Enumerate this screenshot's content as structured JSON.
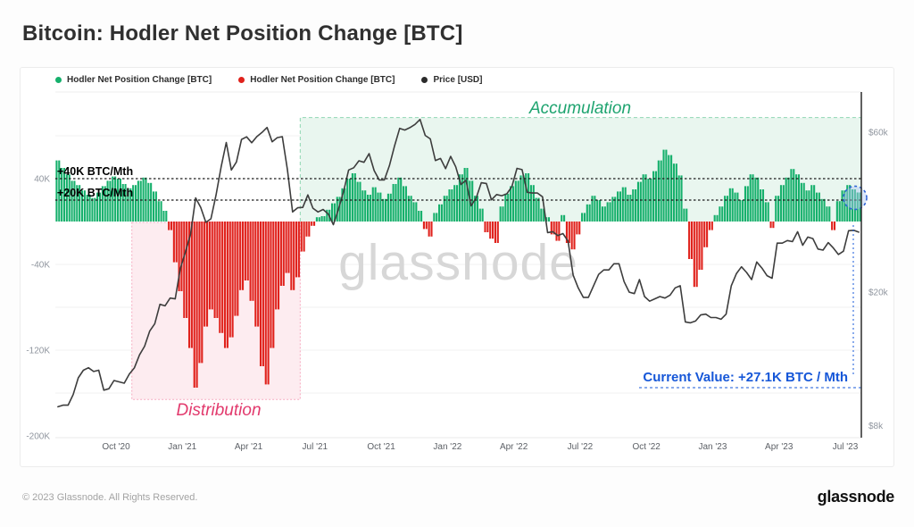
{
  "page_title": "Bitcoin: Hodler Net Position Change [BTC]",
  "legend": [
    {
      "label": "Hodler Net Position Change [BTC]",
      "color": "#16b06c",
      "icon": "green-dot"
    },
    {
      "label": "Hodler Net Position Change [BTC]",
      "color": "#e0221c",
      "icon": "red-dot"
    },
    {
      "label": "Price [USD]",
      "color": "#2b2b2b",
      "icon": "black-dot"
    }
  ],
  "watermark": "glassnode",
  "footer": {
    "copyright": "© 2023 Glassnode. All Rights Reserved.",
    "brand": "glassnode"
  },
  "chart_data": {
    "type": "combo",
    "title": "Bitcoin: Hodler Net Position Change [BTC]",
    "time_range": "Jul 2020 – Jul 2023",
    "sampling": "weekly",
    "x_tick_labels": [
      "Oct '20",
      "Jan '21",
      "Apr '21",
      "Jul '21",
      "Oct '21",
      "Jan '22",
      "Apr '22",
      "Jul '22",
      "Oct '22",
      "Jan '23",
      "Apr '23",
      "Jul '23"
    ],
    "left_axis": {
      "unit": "BTC/Mth",
      "ticks": [
        {
          "label": "40K",
          "value": 40
        },
        {
          "label": "-40K",
          "value": -40
        },
        {
          "label": "-120K",
          "value": -120
        },
        {
          "label": "-200K",
          "value": -200
        }
      ],
      "grid_values": [
        80,
        -40,
        -80,
        -120,
        -160
      ]
    },
    "right_axis": {
      "unit": "USD",
      "scale": "log",
      "ticks": [
        {
          "label": "$60k",
          "value": 60
        },
        {
          "label": "$20k",
          "value": 20
        },
        {
          "label": "$8k",
          "value": 8
        }
      ]
    },
    "series": [
      {
        "name": "Hodler Net Position Change [BTC]",
        "type": "bar",
        "unit": "K BTC / Mth",
        "color_positive": "#16b06c",
        "color_negative": "#e0221c",
        "values": [
          57,
          50,
          44,
          38,
          34,
          29,
          25,
          22,
          27,
          33,
          38,
          42,
          40,
          35,
          31,
          34,
          38,
          41,
          36,
          28,
          19,
          10,
          -8,
          -38,
          -65,
          -90,
          -118,
          -155,
          -132,
          -98,
          -82,
          -90,
          -104,
          -118,
          -108,
          -88,
          -64,
          -55,
          -74,
          -98,
          -135,
          -152,
          -118,
          -82,
          -60,
          -48,
          -64,
          -52,
          -28,
          -14,
          -4,
          4,
          5,
          11,
          17,
          23,
          31,
          40,
          45,
          37,
          29,
          25,
          32,
          27,
          21,
          26,
          35,
          41,
          33,
          24,
          18,
          10,
          -7,
          -14,
          8,
          16,
          24,
          30,
          34,
          44,
          50,
          38,
          24,
          12,
          -10,
          -16,
          -20,
          14,
          26,
          33,
          38,
          43,
          45,
          34,
          22,
          12,
          4,
          -12,
          -18,
          6,
          -20,
          -26,
          -12,
          8,
          16,
          24,
          20,
          14,
          18,
          23,
          28,
          32,
          25,
          30,
          37,
          44,
          40,
          47,
          57,
          67,
          62,
          54,
          43,
          12,
          -35,
          -61,
          -45,
          -24,
          -8,
          6,
          14,
          24,
          31,
          27,
          20,
          33,
          44,
          41,
          30,
          18,
          -6,
          24,
          34,
          41,
          49,
          44,
          36,
          29,
          34,
          27,
          21,
          14,
          -8,
          19,
          29,
          34,
          30,
          27.1
        ]
      },
      {
        "name": "Price [USD]",
        "type": "line",
        "unit": "k USD",
        "color": "#3d3d3d",
        "values": [
          9.1,
          9.2,
          9.2,
          9.9,
          11.1,
          11.7,
          11.9,
          11.6,
          11.7,
          10.2,
          10.3,
          10.9,
          10.8,
          10.7,
          11.4,
          11.9,
          13.0,
          13.8,
          15.3,
          16.1,
          18.4,
          18.2,
          19.2,
          19.1,
          23.5,
          26.3,
          29.8,
          38.2,
          35.8,
          32.3,
          33.1,
          38.9,
          47.2,
          55.9,
          46.3,
          48.9,
          57.1,
          58.1,
          55.8,
          58.2,
          59.9,
          62.0,
          56.2,
          57.8,
          58.2,
          46.4,
          34.7,
          35.7,
          35.8,
          39.0,
          35.6,
          34.7,
          35.3,
          34.2,
          31.8,
          35.4,
          39.9,
          46.3,
          47.0,
          49.3,
          48.8,
          51.8,
          46.1,
          43.2,
          43.2,
          47.7,
          54.7,
          61.6,
          60.9,
          61.9,
          63.3,
          65.5,
          58.7,
          57.3,
          49.4,
          50.1,
          46.7,
          50.8,
          47.3,
          41.9,
          43.1,
          36.2,
          38.2,
          42.4,
          42.2,
          37.7,
          39.1,
          38.8,
          39.3,
          41.3,
          46.8,
          46.4,
          39.7,
          39.5,
          39.5,
          38.5,
          30.1,
          30.3,
          29.5,
          29.9,
          28.4,
          22.5,
          20.6,
          19.3,
          19.3,
          20.9,
          22.6,
          23.3,
          23.3,
          24.3,
          24.3,
          21.5,
          20.0,
          19.8,
          21.8,
          19.4,
          18.8,
          19.1,
          19.4,
          19.2,
          19.6,
          20.6,
          20.9,
          16.3,
          16.2,
          16.4,
          17.1,
          17.2,
          16.8,
          16.8,
          16.6,
          17.2,
          20.9,
          22.7,
          23.8,
          22.9,
          21.8,
          24.6,
          23.6,
          22.4,
          22.0,
          28.0,
          28.0,
          28.5,
          28.3,
          30.3,
          27.6,
          29.2,
          28.9,
          26.9,
          26.7,
          28.1,
          27.1,
          25.9,
          26.5,
          30.5,
          30.6,
          30.2
        ]
      }
    ],
    "annotations": {
      "accumulation": {
        "label": "Accumulation",
        "text_color": "#1fa470",
        "fill_color": "#e9f6ef",
        "border_color": "#8fd6b2",
        "start_index": 48,
        "end_index": 158,
        "top_value_k": 97
      },
      "distribution": {
        "label": "Distribution",
        "text_color": "#e23a6d",
        "fill_color": "#fdecf0",
        "border_color": "#f6aabf",
        "start_index": 15,
        "end_index": 48,
        "bottom_value_k": -166
      },
      "thresholds": [
        {
          "label": "+40K BTC/Mth",
          "value": 40
        },
        {
          "label": "+20K BTC/Mth",
          "value": 20
        }
      ],
      "current_value": {
        "label": "Current Value: +27.1K BTC / Mth",
        "value_k": 27.1,
        "color": "#1657d8"
      }
    }
  }
}
